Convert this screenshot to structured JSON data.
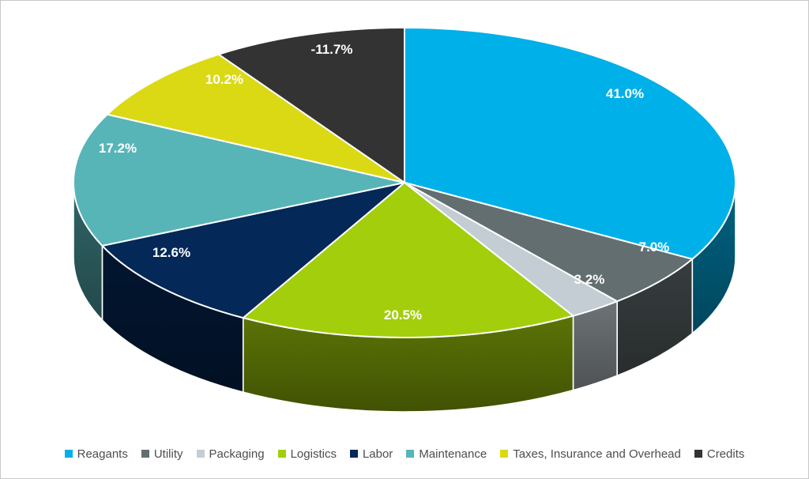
{
  "chart_data": {
    "type": "pie",
    "variant": "pie-3d",
    "title": "",
    "legend_position": "bottom",
    "start_angle": "12 o'clock, clockwise",
    "data_label_color": "#FFFFFF",
    "slices": [
      {
        "label": "Reagants",
        "value": 41.0,
        "display": "41.0%",
        "color": "#00B0E8"
      },
      {
        "label": "Utility",
        "value": 7.0,
        "display": "7.0%",
        "color": "#636E70"
      },
      {
        "label": "Packaging",
        "value": 3.2,
        "display": "3.2%",
        "color": "#C3CDD3"
      },
      {
        "label": "Logistics",
        "value": 20.5,
        "display": "20.5%",
        "color": "#A3CE0B"
      },
      {
        "label": "Labor",
        "value": 12.6,
        "display": "12.6%",
        "color": "#042858"
      },
      {
        "label": "Maintenance",
        "value": 17.2,
        "display": "17.2%",
        "color": "#57B5B8"
      },
      {
        "label": "Taxes, Insurance and Overhead",
        "value": 10.2,
        "display": "10.2%",
        "color": "#DBD914"
      },
      {
        "label": "Credits",
        "value": -11.7,
        "display": "-11.7%",
        "color": "#333333"
      }
    ]
  },
  "canvas": {
    "background": "#FFFFFF",
    "border_color": "#C8C8C8",
    "legend_text_color": "#4D4D4D"
  }
}
